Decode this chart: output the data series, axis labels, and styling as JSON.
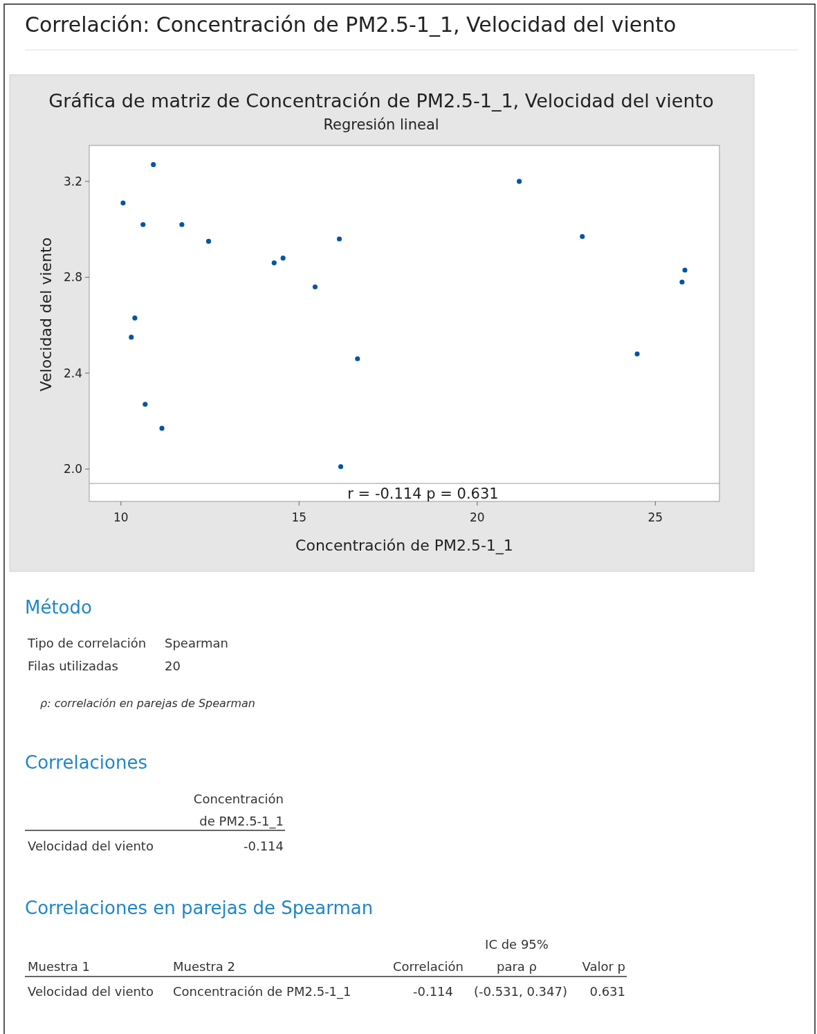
{
  "chart_data": [
    {
      "type": "other",
      "title": "Correlación: Concentración de PM2.5-1_1, Velocidad del viento"
    },
    {
      "type": "scatter",
      "title": "Gráfica de matriz de Concentración de PM2.5-1_1, Velocidad del viento",
      "subtitle": "Regresión lineal",
      "xlabel": "Concentración de PM2.5-1_1",
      "ylabel": "Velocidad del viento",
      "x": [
        10.06,
        10.91,
        10.62,
        11.71,
        12.46,
        14.3,
        14.55,
        15.45,
        16.13,
        16.64,
        16.17,
        10.39,
        10.29,
        10.68,
        11.15,
        21.18,
        22.95,
        24.49,
        25.83,
        25.75
      ],
      "values": [
        3.11,
        3.27,
        3.02,
        3.02,
        2.95,
        2.86,
        2.88,
        2.76,
        2.96,
        2.46,
        2.01,
        2.63,
        2.55,
        2.27,
        2.17,
        3.2,
        2.97,
        2.48,
        2.83,
        2.78
      ],
      "color": "#0054a6",
      "marker": "circle",
      "grid": false,
      "xlim": [
        9.11,
        26.8
      ],
      "xticks": [
        10,
        15,
        20,
        25
      ],
      "ylim": [
        1.94,
        3.35
      ],
      "yticks": [
        {
          "value": 2,
          "label": "2.0"
        },
        2.4,
        2.8,
        3.2
      ],
      "annotations": [
        "r = -0.114  p = 0.631"
      ]
    },
    {
      "type": "other",
      "title": "Método",
      "annotations": [
        "Tipo de correlación",
        "Spearman",
        "Filas utilizadas",
        "20",
        "ρ: correlación en parejas de Spearman"
      ]
    },
    {
      "type": "other",
      "title": "Correlaciones",
      "annotations": [
        "Concentración",
        "de PM2.5-1_1",
        "Velocidad del viento",
        "-0.114"
      ]
    },
    {
      "type": "other",
      "title": "Correlaciones en parejas de Spearman",
      "annotations": [
        "IC de 95%",
        "Muestra 1",
        "Muestra 2",
        "Correlación",
        "para ρ",
        "Valor p",
        "Velocidad del viento",
        "Concentración de PM2.5-1_1",
        "-0.114",
        "(-0.531, 0.347)",
        "0.631"
      ]
    }
  ]
}
